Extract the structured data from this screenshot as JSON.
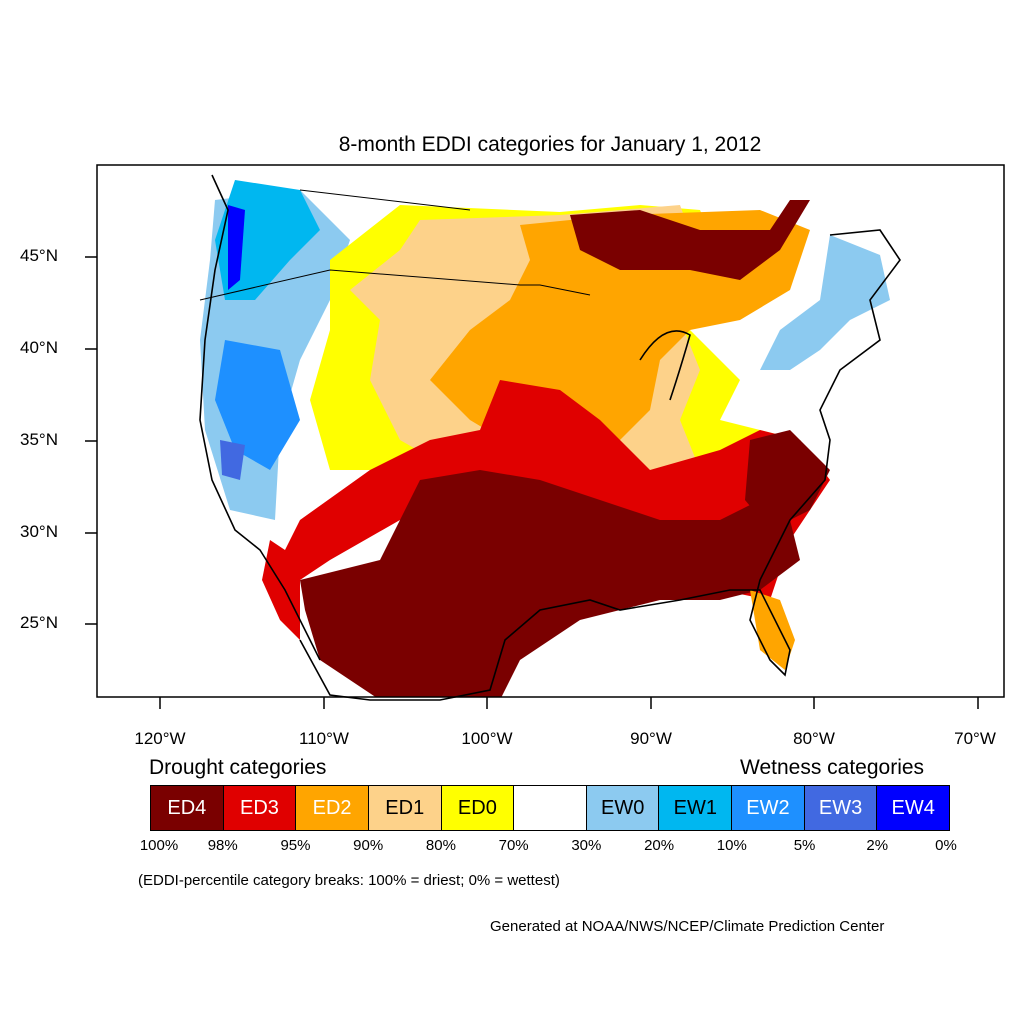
{
  "title": "8-month EDDI categories for January 1, 2012",
  "axes": {
    "latitude_labels": [
      "45°N",
      "40°N",
      "35°N",
      "30°N",
      "25°N"
    ],
    "longitude_labels": [
      "120°W",
      "110°W",
      "100°W",
      "90°W",
      "80°W",
      "70°W"
    ]
  },
  "legend": {
    "drought_heading": "Drought categories",
    "wetness_heading": "Wetness categories",
    "categories": [
      {
        "label": "ED4",
        "color": "#7a0000",
        "text_color": "#ffffff"
      },
      {
        "label": "ED3",
        "color": "#e00000",
        "text_color": "#ffffff"
      },
      {
        "label": "ED2",
        "color": "#ffa500",
        "text_color": "#ffffff"
      },
      {
        "label": "ED1",
        "color": "#fdd28a",
        "text_color": "#000000"
      },
      {
        "label": "ED0",
        "color": "#ffff00",
        "text_color": "#000000"
      },
      {
        "label": "",
        "color": "#ffffff",
        "text_color": "#000000"
      },
      {
        "label": "EW0",
        "color": "#8ccaf0",
        "text_color": "#000000"
      },
      {
        "label": "EW1",
        "color": "#00b7f0",
        "text_color": "#000000"
      },
      {
        "label": "EW2",
        "color": "#1e90ff",
        "text_color": "#ffffff"
      },
      {
        "label": "EW3",
        "color": "#4169e1",
        "text_color": "#ffffff"
      },
      {
        "label": "EW4",
        "color": "#0000ff",
        "text_color": "#ffffff"
      }
    ],
    "breaks": [
      "100%",
      "98%",
      "95%",
      "90%",
      "80%",
      "70%",
      "30%",
      "20%",
      "10%",
      "5%",
      "2%",
      "0%"
    ]
  },
  "note": "(EDDI-percentile category breaks: 100% = driest; 0% = wettest)",
  "credit": "Generated at NOAA/NWS/NCEP/Climate Prediction Center"
}
